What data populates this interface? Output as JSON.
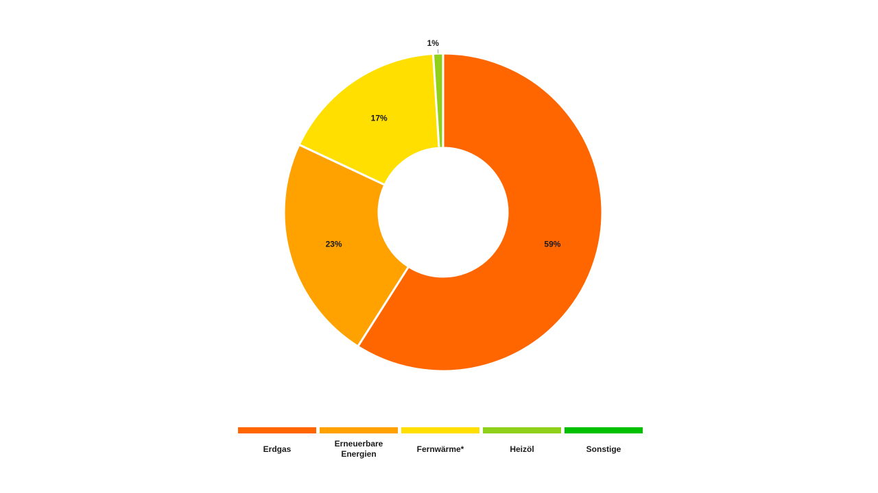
{
  "chart_data": {
    "type": "pie",
    "variant": "donut",
    "title": "",
    "categories": [
      "Erdgas",
      "Erneuerbare\nEnergien",
      "Fernwärme*",
      "Heizöl",
      "Sonstige"
    ],
    "values": [
      59,
      23,
      17,
      1,
      0
    ],
    "data_labels": [
      "59%",
      "23%",
      "17%",
      "1%",
      ""
    ],
    "unit": "%",
    "legend_position": "bottom",
    "colors": [
      "#ff6600",
      "#ffa200",
      "#ffdf00",
      "#8fd11a",
      "#00c000"
    ]
  }
}
